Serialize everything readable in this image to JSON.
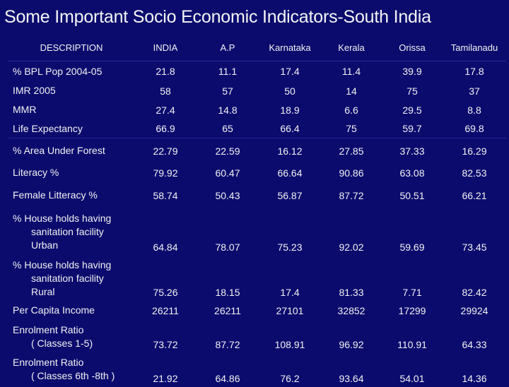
{
  "title": "Some Important Socio Economic Indicators-South India",
  "table": {
    "headers": [
      "DESCRIPTION",
      "INDIA",
      "A.P",
      "Karnataka",
      "Kerala",
      "Orissa",
      "Tamilanadu"
    ],
    "rows": [
      {
        "label": [
          "% BPL Pop 2004-05"
        ],
        "values": [
          "21.8",
          "11.1",
          "17.4",
          "11.4",
          "39.9",
          "17.8"
        ]
      },
      {
        "label": [
          "IMR 2005"
        ],
        "values": [
          "58",
          "57",
          "50",
          "14",
          "75",
          "37"
        ]
      },
      {
        "label": [
          "MMR"
        ],
        "values": [
          "27.4",
          "14.8",
          "18.9",
          "6.6",
          "29.5",
          "8.8"
        ]
      },
      {
        "label": [
          "Life Expectancy"
        ],
        "values": [
          "66.9",
          "65",
          "66.4",
          "75",
          "59.7",
          "69.8"
        ]
      },
      {
        "label": [
          "% Area Under Forest"
        ],
        "values": [
          "22.79",
          "22.59",
          "16.12",
          "27.85",
          "37.33",
          "16.29"
        ]
      },
      {
        "label": [
          "Literacy %"
        ],
        "values": [
          "79.92",
          "60.47",
          "66.64",
          "90.86",
          "63.08",
          "82.53"
        ]
      },
      {
        "label": [
          "Female Litteracy  %"
        ],
        "values": [
          "58.74",
          "50.43",
          "56.87",
          "87.72",
          "50.51",
          "66.21"
        ]
      },
      {
        "label": [
          "% House holds having",
          "sanitation facility",
          "Urban"
        ],
        "values": [
          "64.84",
          "78.07",
          "75.23",
          "92.02",
          "59.69",
          "73.45"
        ]
      },
      {
        "label": [
          "% House holds having",
          "sanitation facility",
          "Rural"
        ],
        "values": [
          "75.26",
          "18.15",
          "17.4",
          "81.33",
          "7.71",
          "82.42"
        ]
      },
      {
        "label": [
          "Per Capita Income"
        ],
        "values": [
          "26211",
          "26211",
          "27101",
          "32852",
          "17299",
          "29924"
        ]
      },
      {
        "label": [
          "Enrolment Ratio",
          "( Classes 1-5)"
        ],
        "values": [
          "73.72",
          "87.72",
          "108.91",
          "96.92",
          "110.91",
          "64.33"
        ]
      },
      {
        "label": [
          "Enrolment Ratio",
          "( Classes 6th -8th )"
        ],
        "values": [
          "21.92",
          "64.86",
          "76.2",
          "93.64",
          "54.01",
          "14.36"
        ]
      }
    ]
  }
}
